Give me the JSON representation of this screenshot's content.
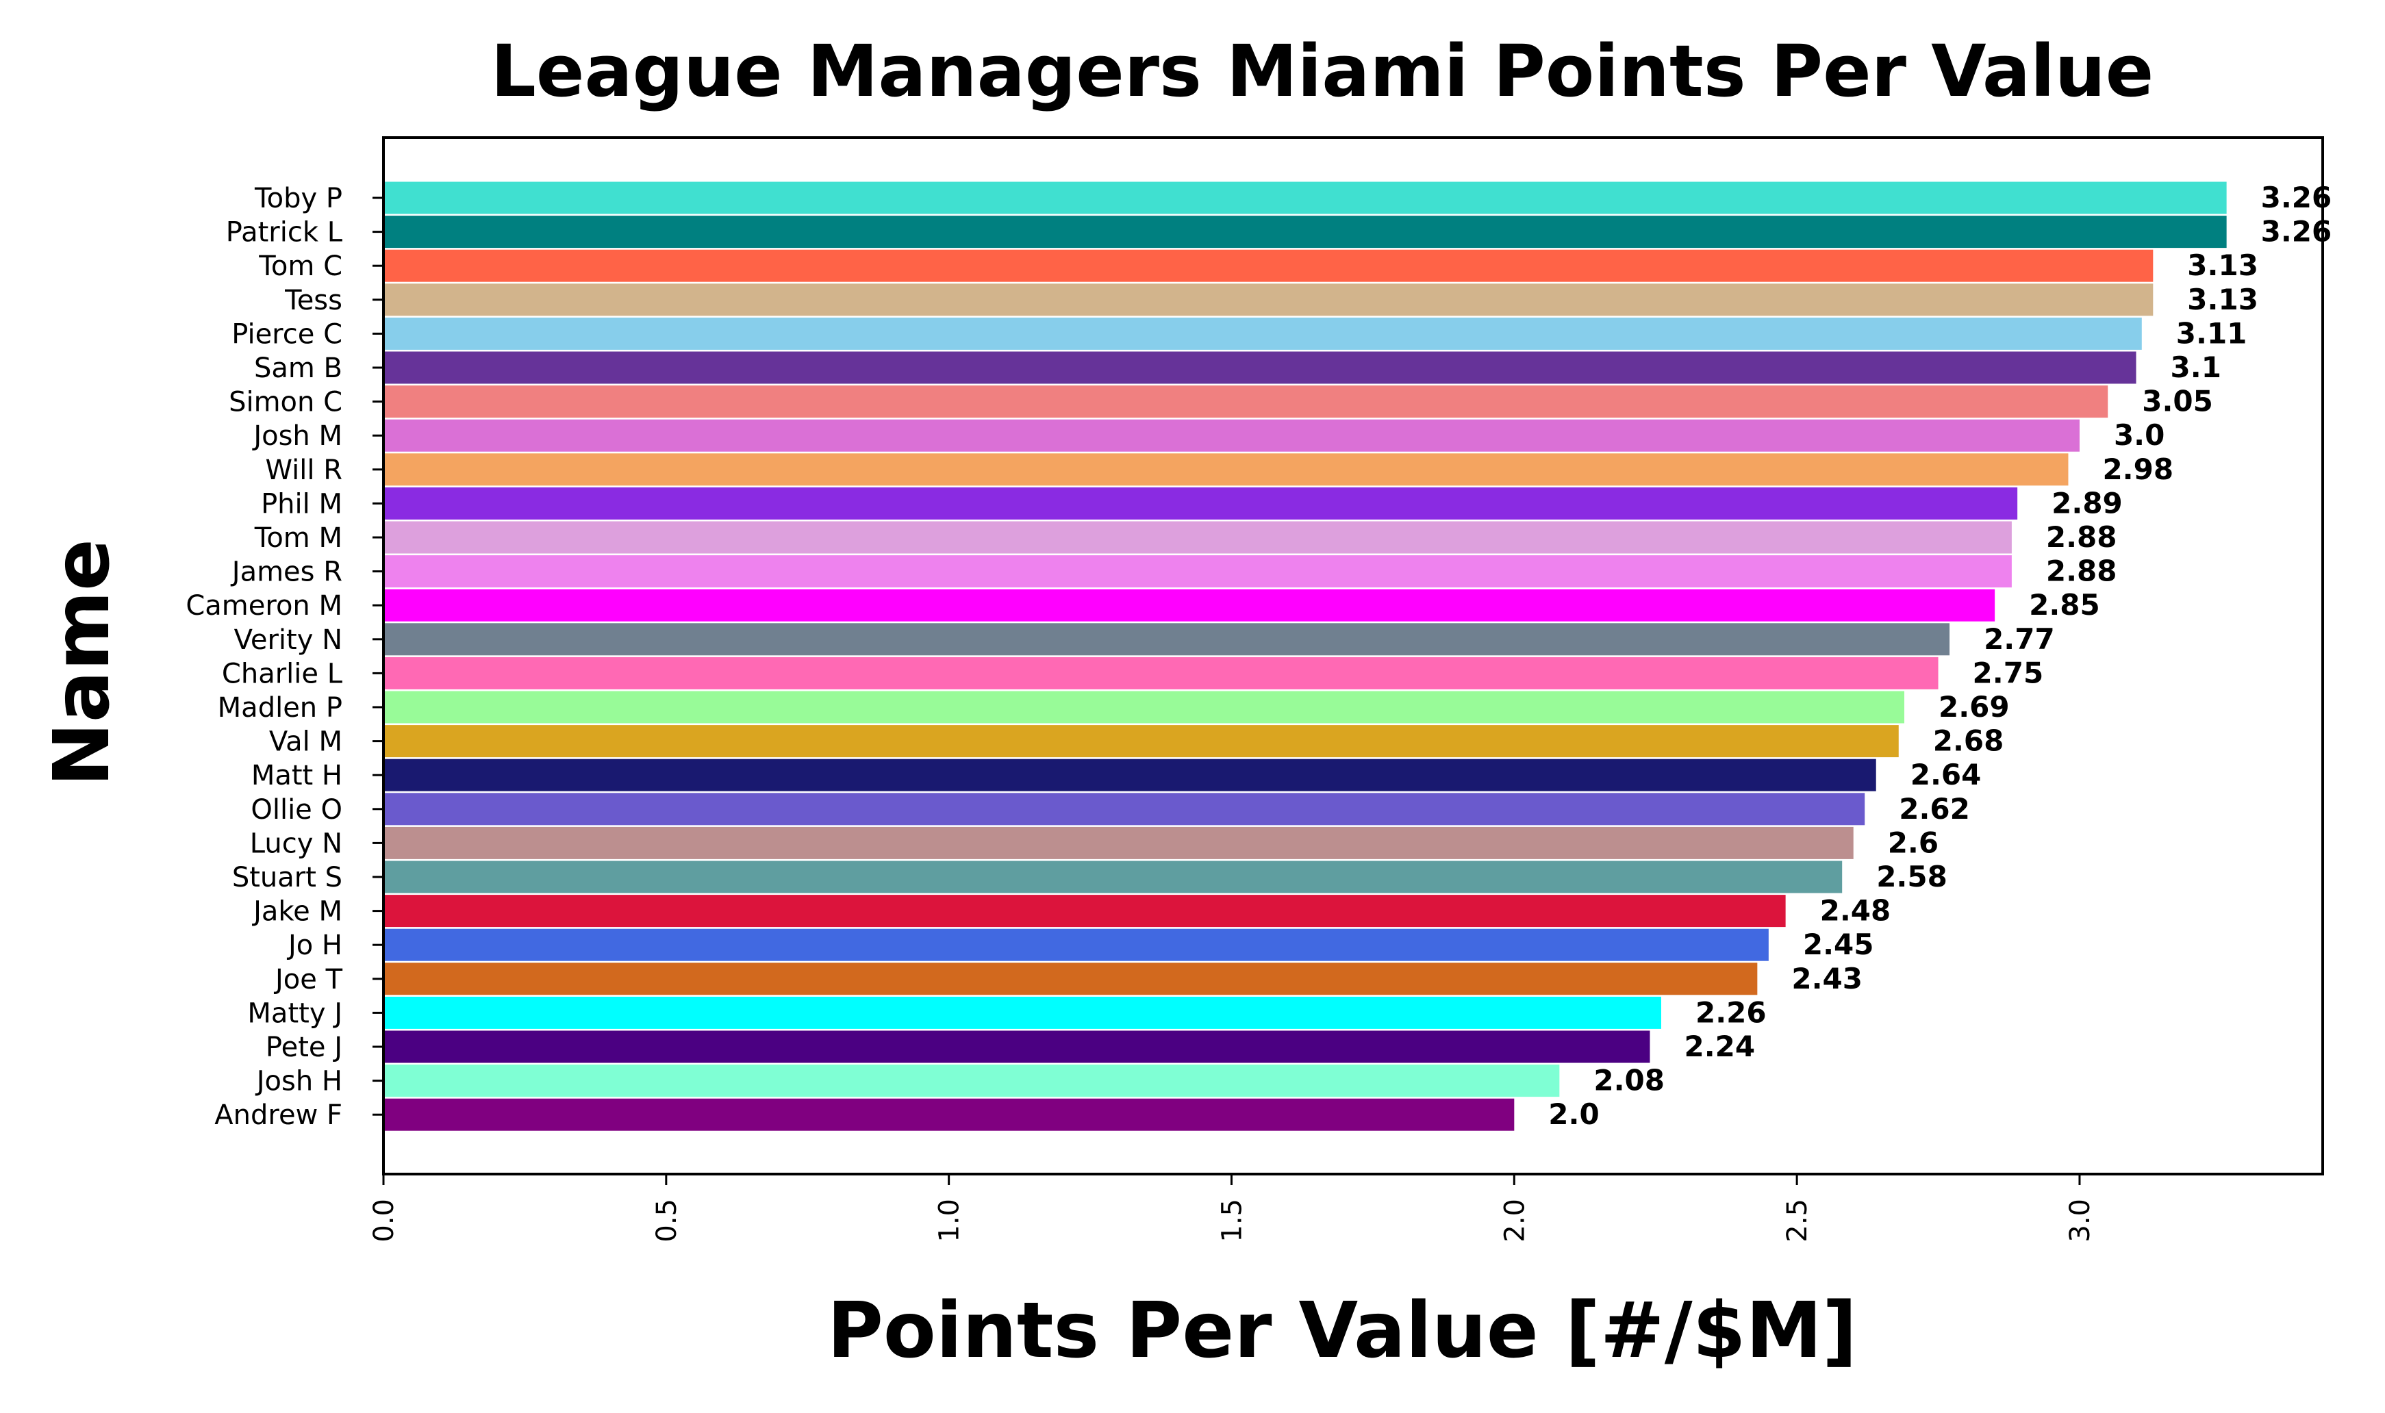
{
  "chart_data": {
    "type": "bar",
    "orientation": "horizontal",
    "title": "League Managers Miami Points Per Value",
    "xlabel": "Points Per Value [#/$M]",
    "ylabel": "Name",
    "xlim": [
      0,
      3.43
    ],
    "xticks": [
      "0.0",
      "0.5",
      "1.0",
      "1.5",
      "2.0",
      "2.5",
      "3.0"
    ],
    "grid": false,
    "legend": "none",
    "categories": [
      "Toby P",
      "Patrick L",
      "Tom C",
      "Tess",
      "Pierce C",
      "Sam B",
      "Simon C",
      "Josh M",
      "Will R",
      "Phil M",
      "Tom M",
      "James R",
      "Cameron M",
      "Verity N",
      "Charlie L",
      "Madlen P",
      "Val M",
      "Matt H",
      "Ollie O",
      "Lucy N",
      "Stuart S",
      "Jake M",
      "Jo H",
      "Joe T",
      "Matty J",
      "Pete J",
      "Josh H",
      "Andrew F"
    ],
    "values": [
      3.26,
      3.26,
      3.13,
      3.13,
      3.11,
      3.1,
      3.05,
      3.0,
      2.98,
      2.89,
      2.88,
      2.88,
      2.85,
      2.77,
      2.75,
      2.69,
      2.68,
      2.64,
      2.62,
      2.6,
      2.58,
      2.48,
      2.45,
      2.43,
      2.26,
      2.24,
      2.08,
      2.0
    ],
    "value_labels": [
      "3.26",
      "3.26",
      "3.13",
      "3.13",
      "3.11",
      "3.1",
      "3.05",
      "3.0",
      "2.98",
      "2.89",
      "2.88",
      "2.88",
      "2.85",
      "2.77",
      "2.75",
      "2.69",
      "2.68",
      "2.64",
      "2.62",
      "2.6",
      "2.58",
      "2.48",
      "2.45",
      "2.43",
      "2.26",
      "2.24",
      "2.08",
      "2.0"
    ],
    "colors": [
      "#40E0D0",
      "#008080",
      "#FF6347",
      "#D2B48C",
      "#87CEEB",
      "#663399",
      "#F08080",
      "#DA70D6",
      "#F4A460",
      "#8A2BE2",
      "#DDA0DD",
      "#EE82EE",
      "#FF00FF",
      "#708090",
      "#FF69B4",
      "#98FB98",
      "#DAA520",
      "#191970",
      "#6A5ACD",
      "#BC8F8F",
      "#5F9EA0",
      "#DC143C",
      "#4169E1",
      "#D2691E",
      "#00FFFF",
      "#4B0082",
      "#7FFFD4",
      "#800080"
    ]
  }
}
